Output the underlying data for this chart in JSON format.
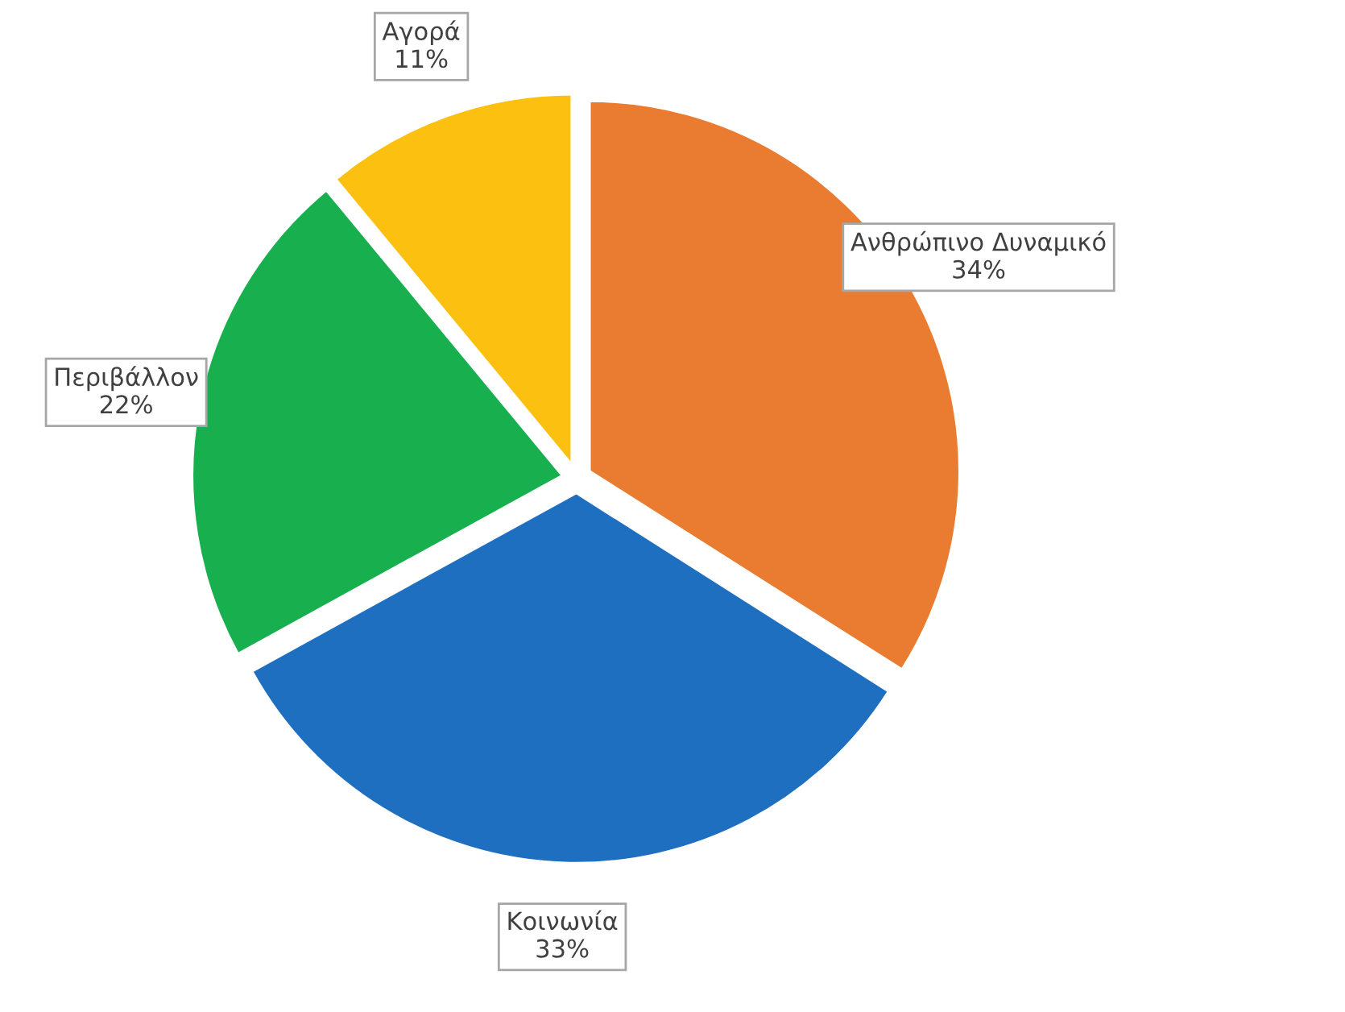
{
  "chart_data": {
    "type": "pie",
    "categories": [
      "Ανθρώπινο Δυναμικό",
      "Κοινωνία",
      "Περιβάλλον",
      "Αγορά"
    ],
    "values": [
      34,
      33,
      22,
      11
    ],
    "value_labels": [
      "34%",
      "33%",
      "22%",
      "11%"
    ],
    "colors": [
      "#e97c30",
      "#1f6fc0",
      "#18b04f",
      "#fbc010"
    ],
    "legend": false
  }
}
